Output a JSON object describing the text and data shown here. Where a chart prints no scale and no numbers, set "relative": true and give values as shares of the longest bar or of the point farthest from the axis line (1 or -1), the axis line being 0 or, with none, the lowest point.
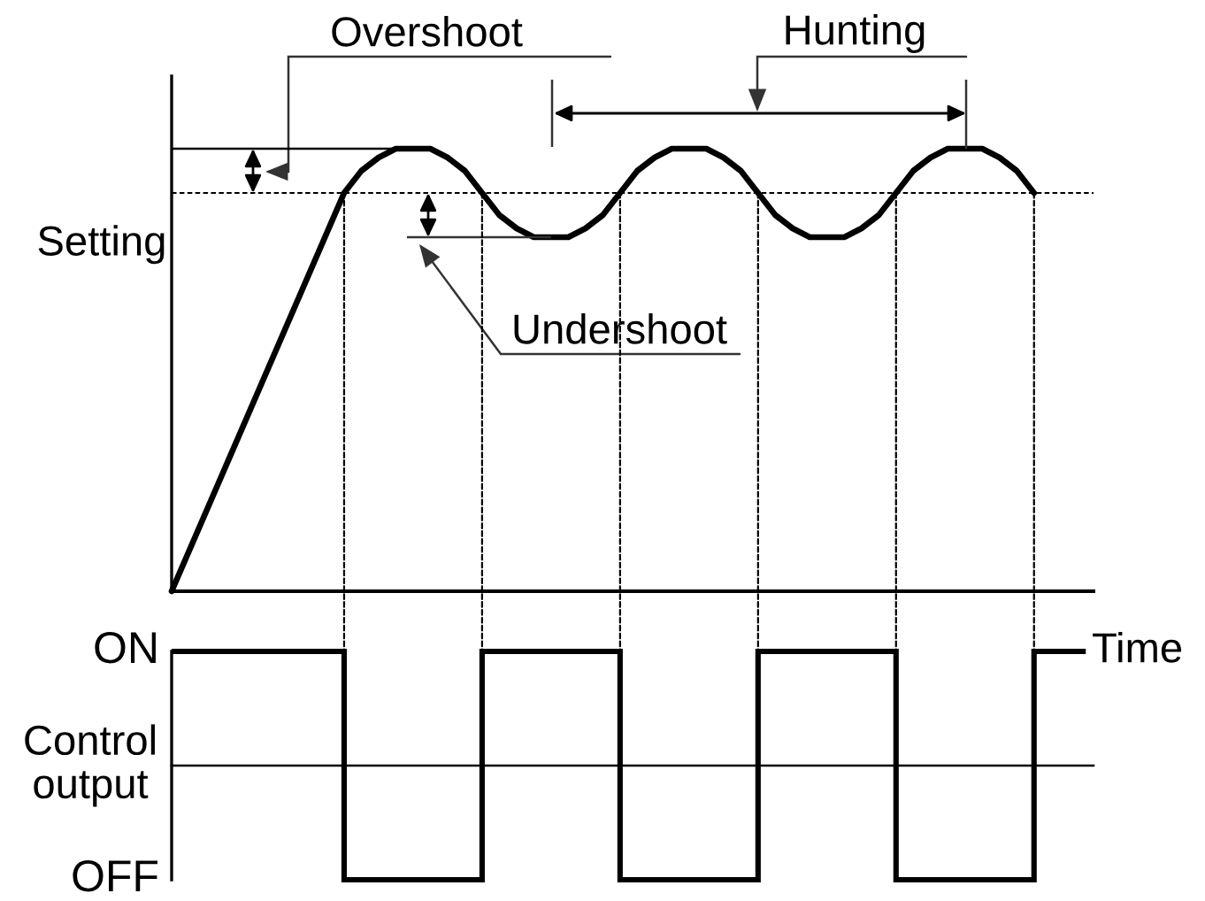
{
  "chart_data": [
    {
      "type": "line",
      "relative": true,
      "categories": [
        null,
        null,
        null,
        null,
        null,
        null,
        null,
        null,
        null,
        null,
        null,
        null,
        null,
        null,
        null,
        null,
        null,
        null,
        null,
        null,
        null,
        null,
        null,
        null,
        null,
        null,
        null,
        null,
        null,
        null,
        null,
        null,
        null,
        null,
        null,
        null,
        null,
        null,
        null,
        null,
        null,
        null,
        null,
        null,
        null,
        null,
        null,
        null,
        null,
        null,
        null
      ],
      "series": [
        {
          "color": "#000000",
          "values": [
            0,
            0.09,
            0.18,
            0.27,
            0.36,
            0.45,
            0.54,
            0.63,
            0.72,
            0.81,
            0.9,
            0.95,
            0.98,
            1,
            1,
            1,
            0.98,
            0.95,
            0.9,
            0.85,
            0.82,
            0.8,
            0.8,
            0.8,
            0.82,
            0.85,
            0.9,
            0.95,
            0.98,
            1,
            1,
            1,
            0.98,
            0.95,
            0.9,
            0.85,
            0.82,
            0.8,
            0.8,
            0.8,
            0.82,
            0.85,
            0.9,
            0.95,
            0.98,
            1,
            1,
            1,
            0.98,
            0.95,
            0.9
          ]
        }
      ],
      "ref_lines": [
        {
          "axis": "y",
          "value": 0.9,
          "label": "Setting",
          "line_style": "dotted"
        }
      ],
      "annotations": [
        "Overshoot",
        "Undershoot",
        "Hunting"
      ]
    },
    {
      "type": "step",
      "relative": true,
      "categories": [
        null,
        null,
        null,
        null,
        null,
        null,
        null,
        null,
        null,
        null,
        null,
        null,
        null,
        null,
        null,
        null,
        null,
        null,
        null,
        null,
        null,
        null,
        null,
        null,
        null,
        null,
        null,
        null,
        null,
        null,
        null,
        null,
        null,
        null,
        null,
        null,
        null,
        null,
        null,
        null,
        null,
        null,
        null,
        null,
        null,
        null,
        null,
        null,
        null,
        null,
        null,
        null,
        null,
        null
      ],
      "series": [
        {
          "color": "#000000",
          "values": [
            1,
            1,
            1,
            1,
            1,
            1,
            1,
            1,
            1,
            1,
            -1,
            -1,
            -1,
            -1,
            -1,
            -1,
            -1,
            -1,
            1,
            1,
            1,
            1,
            1,
            1,
            1,
            1,
            -1,
            -1,
            -1,
            -1,
            -1,
            -1,
            -1,
            -1,
            1,
            1,
            1,
            1,
            1,
            1,
            1,
            1,
            -1,
            -1,
            -1,
            -1,
            -1,
            -1,
            -1,
            -1,
            1,
            1,
            1,
            1
          ]
        }
      ],
      "annotations": [
        "ON",
        "OFF"
      ],
      "ylabel": "Control\noutput",
      "xlabel": "Time"
    }
  ]
}
